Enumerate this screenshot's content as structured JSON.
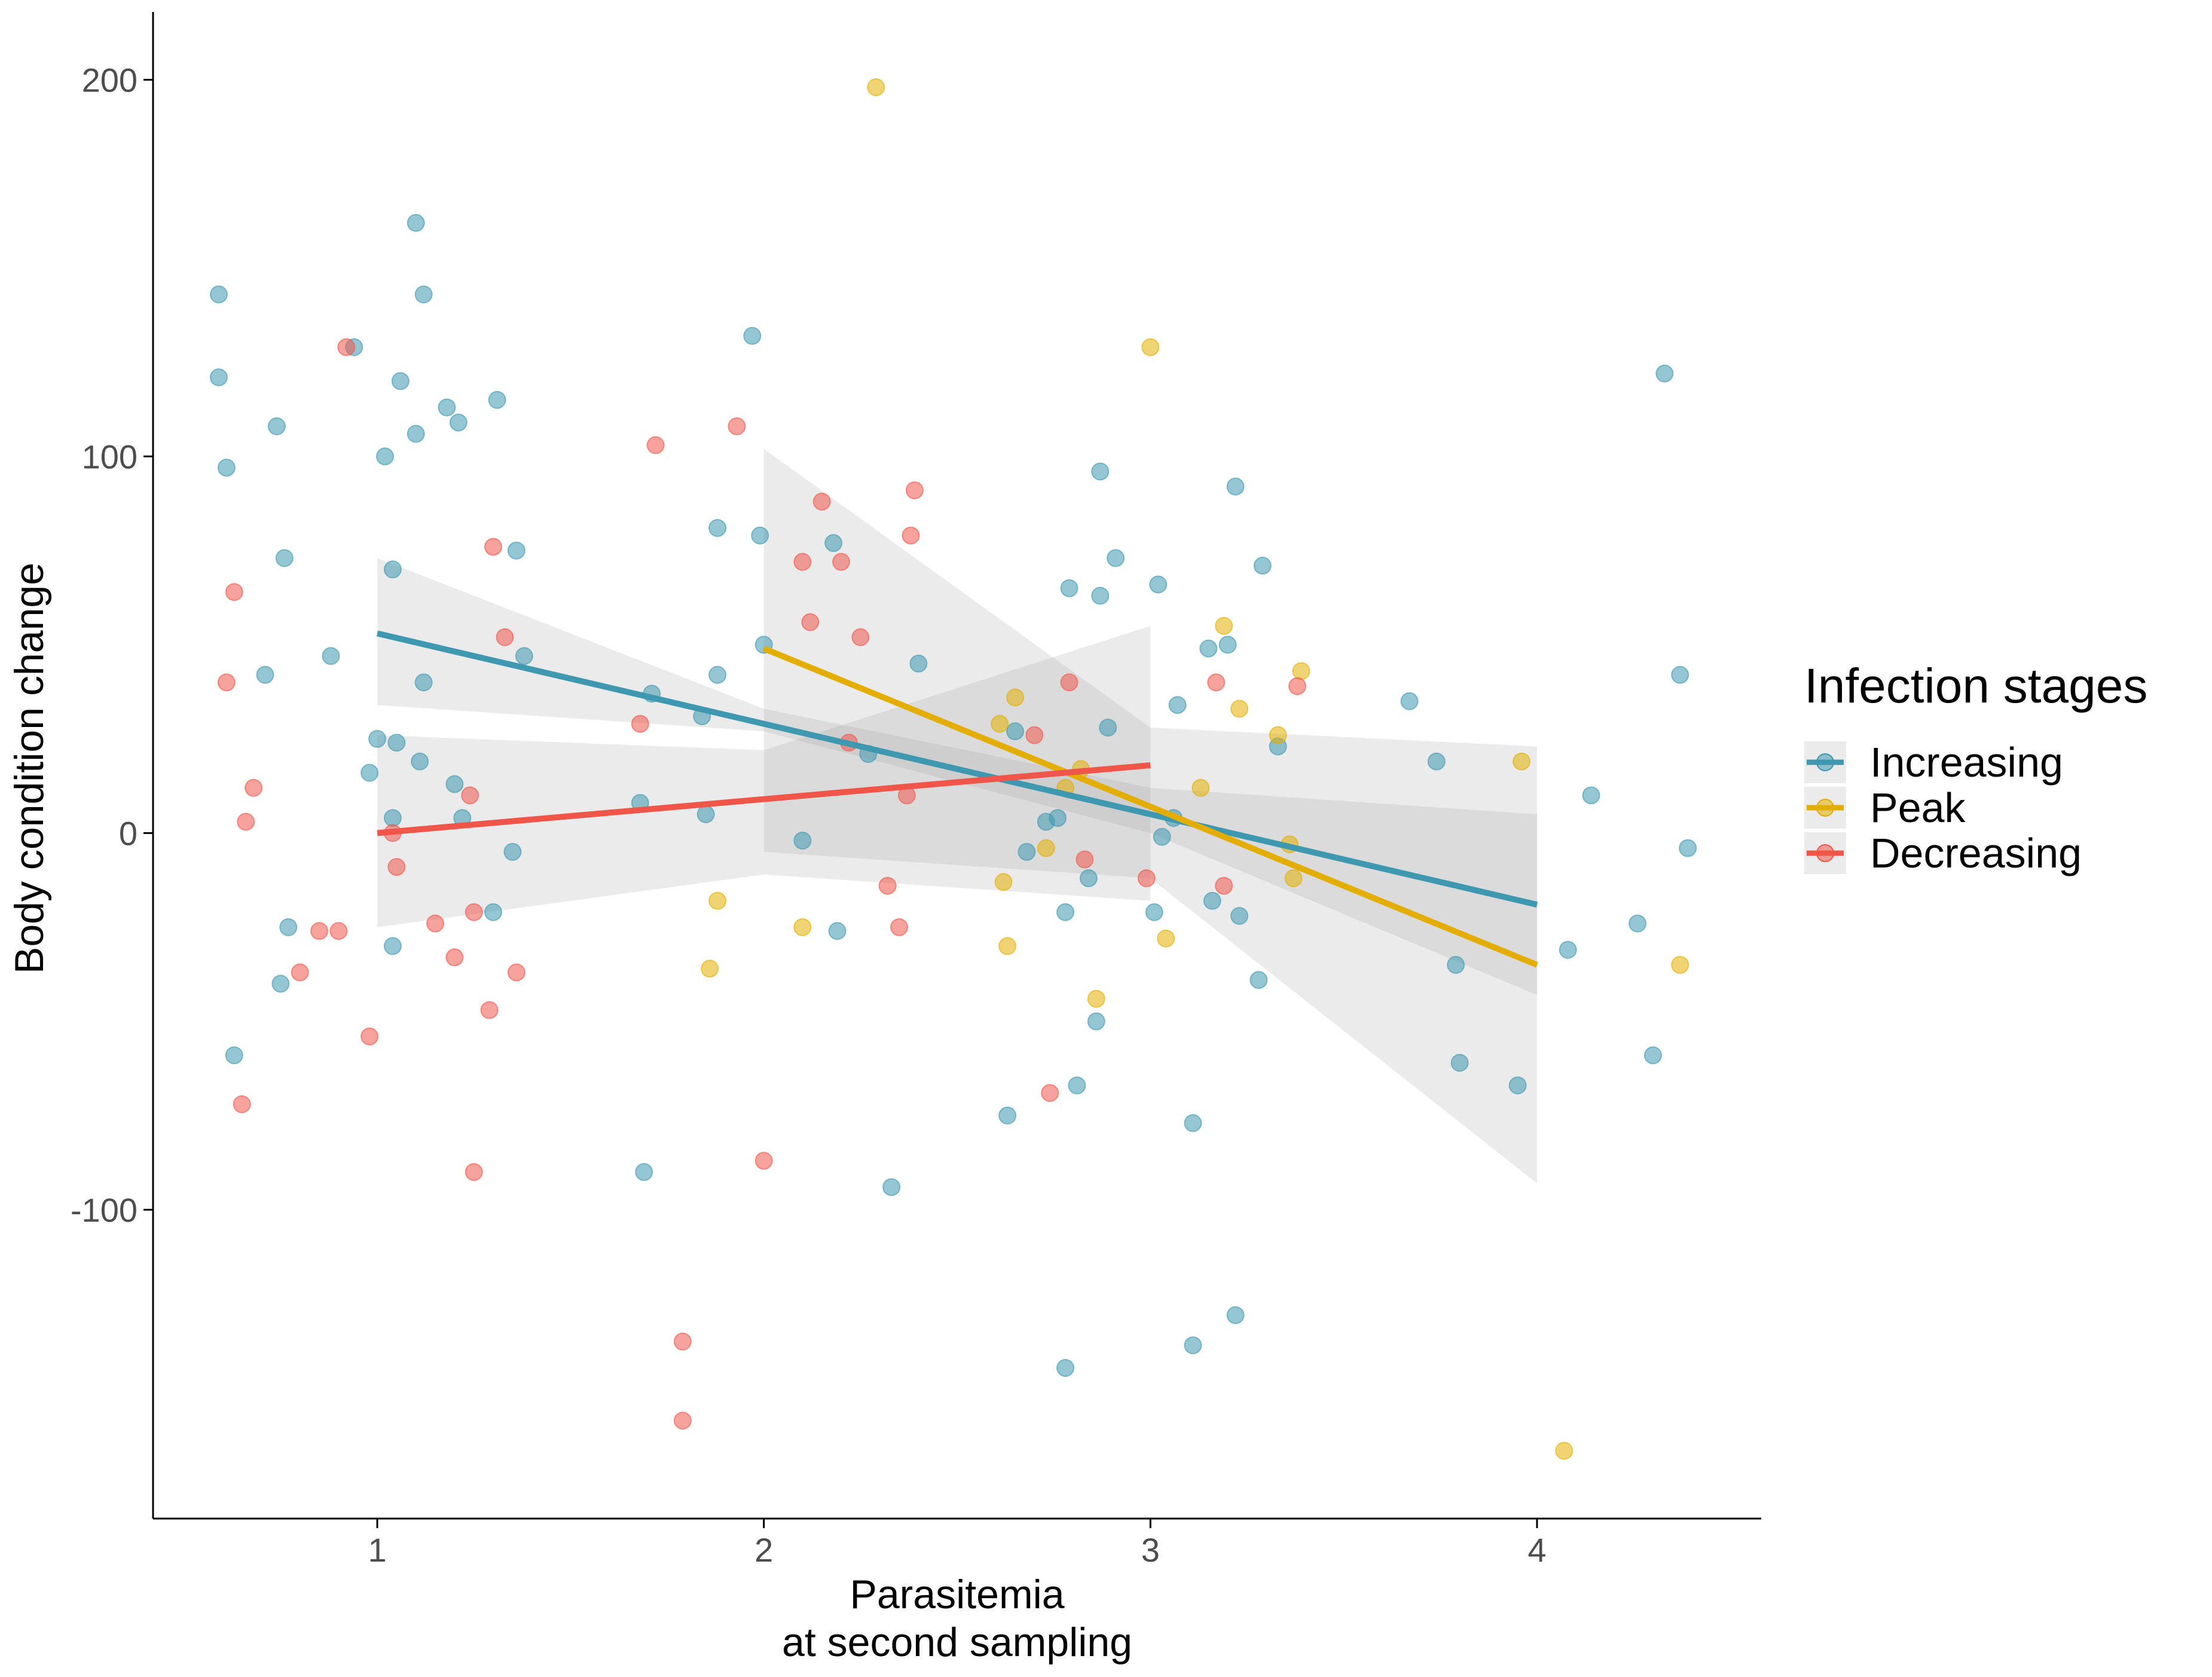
{
  "chart_data": {
    "type": "scatter",
    "xlabel_lines": [
      "Parasitemia",
      "at second sampling"
    ],
    "ylabel": "Body condition change",
    "xlim": [
      0.42,
      4.58
    ],
    "ylim": [
      -182,
      218
    ],
    "x_ticks": [
      1,
      2,
      3,
      4
    ],
    "y_ticks": [
      -100,
      0,
      100,
      200
    ],
    "x_tick_labels": [
      "1",
      "2",
      "3",
      "4"
    ],
    "y_tick_labels": [
      "-100",
      "0",
      "100",
      "200"
    ],
    "grid": false,
    "legend": {
      "title": "Infection stages",
      "placement": "right",
      "entries": [
        "Increasing",
        "Peak",
        "Decreasing"
      ]
    },
    "series": [
      {
        "name": "Increasing",
        "color": "#3E98B0",
        "points": [
          [
            0.59,
            143
          ],
          [
            0.59,
            121
          ],
          [
            0.61,
            97
          ],
          [
            0.63,
            -59
          ],
          [
            0.71,
            42
          ],
          [
            0.74,
            108
          ],
          [
            0.75,
            -40
          ],
          [
            0.76,
            73
          ],
          [
            0.77,
            -25
          ],
          [
            0.88,
            47
          ],
          [
            0.94,
            129
          ],
          [
            0.98,
            16
          ],
          [
            1.0,
            25
          ],
          [
            1.02,
            100
          ],
          [
            1.04,
            70
          ],
          [
            1.04,
            4
          ],
          [
            1.04,
            -30
          ],
          [
            1.05,
            24
          ],
          [
            1.06,
            120
          ],
          [
            1.1,
            162
          ],
          [
            1.1,
            106
          ],
          [
            1.11,
            19
          ],
          [
            1.12,
            143
          ],
          [
            1.12,
            40
          ],
          [
            1.18,
            113
          ],
          [
            1.2,
            13
          ],
          [
            1.21,
            109
          ],
          [
            1.22,
            4
          ],
          [
            1.3,
            -21
          ],
          [
            1.31,
            115
          ],
          [
            1.35,
            -5
          ],
          [
            1.36,
            75
          ],
          [
            1.38,
            47
          ],
          [
            1.68,
            8
          ],
          [
            1.69,
            -90
          ],
          [
            1.71,
            37
          ],
          [
            1.84,
            31
          ],
          [
            1.85,
            5
          ],
          [
            1.88,
            81
          ],
          [
            1.88,
            42
          ],
          [
            1.97,
            132
          ],
          [
            1.99,
            79
          ],
          [
            2.0,
            50
          ],
          [
            2.1,
            -2
          ],
          [
            2.18,
            77
          ],
          [
            2.19,
            -26
          ],
          [
            2.27,
            21
          ],
          [
            2.33,
            -94
          ],
          [
            2.4,
            45
          ],
          [
            2.63,
            -75
          ],
          [
            2.65,
            27
          ],
          [
            2.68,
            -5
          ],
          [
            2.73,
            3
          ],
          [
            2.76,
            4
          ],
          [
            2.78,
            -21
          ],
          [
            2.78,
            -142
          ],
          [
            2.79,
            65
          ],
          [
            2.81,
            -67
          ],
          [
            2.84,
            -12
          ],
          [
            2.86,
            -50
          ],
          [
            2.87,
            96
          ],
          [
            2.87,
            63
          ],
          [
            2.89,
            28
          ],
          [
            2.91,
            73
          ],
          [
            3.01,
            -21
          ],
          [
            3.02,
            66
          ],
          [
            3.03,
            -1
          ],
          [
            3.06,
            4
          ],
          [
            3.07,
            34
          ],
          [
            3.11,
            -77
          ],
          [
            3.11,
            -136
          ],
          [
            3.15,
            49
          ],
          [
            3.16,
            -18
          ],
          [
            3.2,
            50
          ],
          [
            3.22,
            92
          ],
          [
            3.22,
            -128
          ],
          [
            3.23,
            -22
          ],
          [
            3.28,
            -39
          ],
          [
            3.29,
            71
          ],
          [
            3.33,
            23
          ],
          [
            3.67,
            35
          ],
          [
            3.74,
            19
          ],
          [
            3.79,
            -35
          ],
          [
            3.8,
            -61
          ],
          [
            3.95,
            -67
          ],
          [
            4.08,
            -31
          ],
          [
            4.14,
            10
          ],
          [
            4.26,
            -24
          ],
          [
            4.3,
            -59
          ],
          [
            4.33,
            122
          ],
          [
            4.37,
            42
          ],
          [
            4.39,
            -4
          ]
        ],
        "fit": {
          "x": [
            1,
            4
          ],
          "y": [
            53,
            -19
          ]
        },
        "ci_lower": [
          [
            1,
            34
          ],
          [
            2,
            27
          ],
          [
            3,
            0
          ],
          [
            4,
            -43
          ]
        ],
        "ci_upper": [
          [
            1,
            73
          ],
          [
            2,
            33
          ],
          [
            3,
            12
          ],
          [
            4,
            5
          ]
        ]
      },
      {
        "name": "Peak",
        "color": "#E3AE00",
        "points": [
          [
            1.86,
            -36
          ],
          [
            1.88,
            -18
          ],
          [
            2.1,
            -25
          ],
          [
            2.29,
            198
          ],
          [
            2.61,
            29
          ],
          [
            2.62,
            -13
          ],
          [
            2.63,
            -30
          ],
          [
            2.65,
            36
          ],
          [
            2.73,
            -4
          ],
          [
            2.78,
            12
          ],
          [
            2.82,
            17
          ],
          [
            2.86,
            -44
          ],
          [
            3.0,
            129
          ],
          [
            3.04,
            -28
          ],
          [
            3.13,
            12
          ],
          [
            3.19,
            55
          ],
          [
            3.23,
            33
          ],
          [
            3.33,
            26
          ],
          [
            3.36,
            -3
          ],
          [
            3.37,
            -12
          ],
          [
            3.39,
            43
          ],
          [
            3.96,
            19
          ],
          [
            4.07,
            -164
          ],
          [
            4.37,
            -35
          ]
        ],
        "fit": {
          "x": [
            2,
            4
          ],
          "y": [
            49,
            -35
          ]
        },
        "ci_lower": [
          [
            2,
            -5
          ],
          [
            3,
            -12
          ],
          [
            4,
            -93
          ]
        ],
        "ci_upper": [
          [
            2,
            102
          ],
          [
            3,
            28
          ],
          [
            4,
            23
          ]
        ]
      },
      {
        "name": "Decreasing",
        "color": "#F0554A",
        "points": [
          [
            0.61,
            40
          ],
          [
            0.63,
            64
          ],
          [
            0.65,
            -72
          ],
          [
            0.66,
            3
          ],
          [
            0.68,
            12
          ],
          [
            0.8,
            -37
          ],
          [
            0.85,
            -26
          ],
          [
            0.9,
            -26
          ],
          [
            0.92,
            129
          ],
          [
            0.98,
            -54
          ],
          [
            1.04,
            0
          ],
          [
            1.05,
            -9
          ],
          [
            1.15,
            -24
          ],
          [
            1.2,
            -33
          ],
          [
            1.24,
            10
          ],
          [
            1.25,
            -21
          ],
          [
            1.25,
            -90
          ],
          [
            1.29,
            -47
          ],
          [
            1.3,
            76
          ],
          [
            1.33,
            52
          ],
          [
            1.36,
            -37
          ],
          [
            1.68,
            29
          ],
          [
            1.72,
            103
          ],
          [
            1.79,
            -135
          ],
          [
            1.79,
            -156
          ],
          [
            1.93,
            108
          ],
          [
            2.0,
            -87
          ],
          [
            2.1,
            72
          ],
          [
            2.12,
            56
          ],
          [
            2.15,
            88
          ],
          [
            2.2,
            72
          ],
          [
            2.22,
            24
          ],
          [
            2.25,
            52
          ],
          [
            2.32,
            -14
          ],
          [
            2.35,
            -25
          ],
          [
            2.37,
            10
          ],
          [
            2.38,
            79
          ],
          [
            2.39,
            91
          ],
          [
            2.7,
            26
          ],
          [
            2.74,
            -69
          ],
          [
            2.79,
            40
          ],
          [
            2.83,
            -7
          ],
          [
            2.99,
            -12
          ],
          [
            3.17,
            40
          ],
          [
            3.19,
            -14
          ],
          [
            3.38,
            39
          ]
        ],
        "fit": {
          "x": [
            1,
            3
          ],
          "y": [
            0,
            18
          ]
        },
        "ci_lower": [
          [
            1,
            -25
          ],
          [
            2,
            -11
          ],
          [
            3,
            -18
          ]
        ],
        "ci_upper": [
          [
            1,
            26
          ],
          [
            2,
            22
          ],
          [
            3,
            55
          ]
        ]
      }
    ]
  }
}
